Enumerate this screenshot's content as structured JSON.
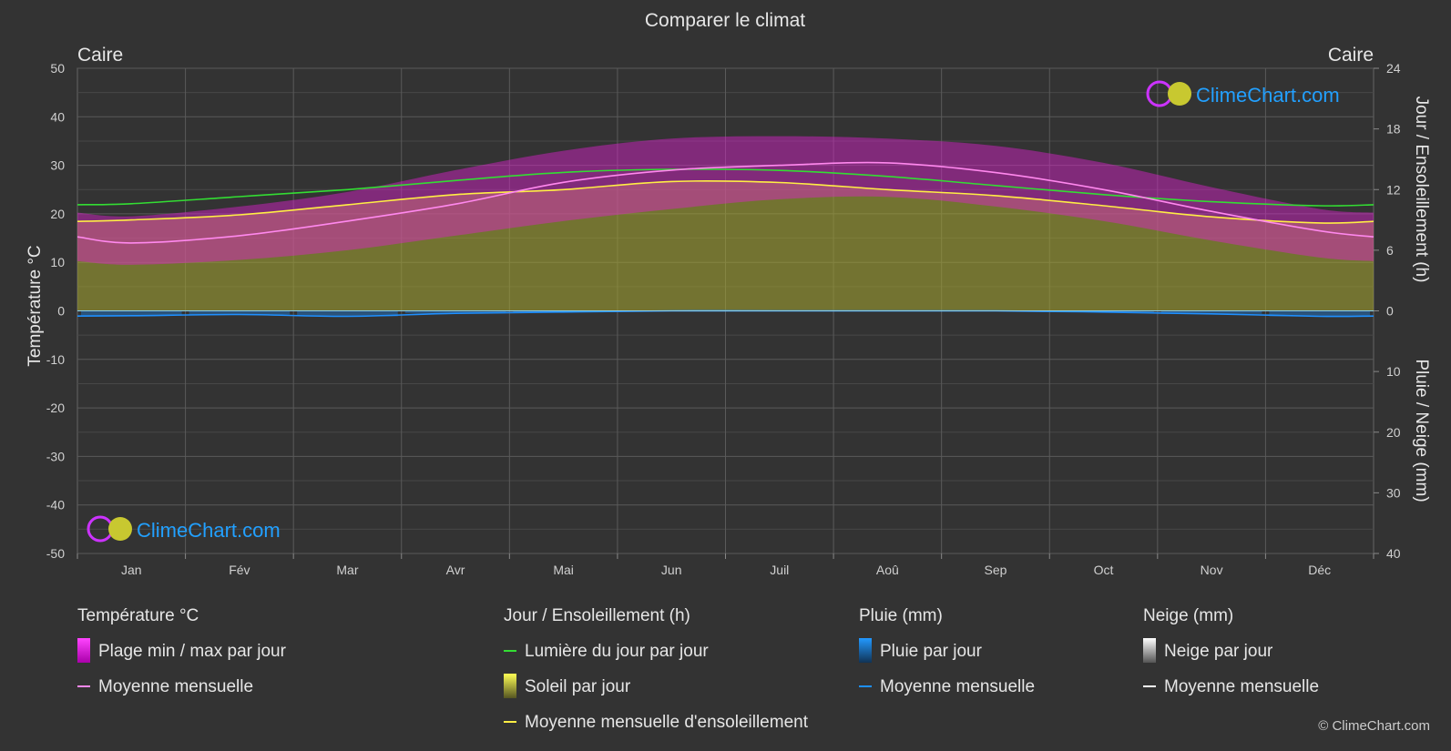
{
  "page": {
    "title": "Comparer le climat"
  },
  "chart_data": {
    "type": "area",
    "title": "Comparer le climat",
    "location_left": "Caire",
    "location_right": "Caire",
    "months": [
      "Jan",
      "Fév",
      "Mar",
      "Avr",
      "Mai",
      "Jun",
      "Juil",
      "Aoû",
      "Sep",
      "Oct",
      "Nov",
      "Déc"
    ],
    "axes": {
      "y_left": {
        "label": "Température °C",
        "min": -50,
        "max": 50,
        "ticks": [
          50,
          40,
          30,
          20,
          10,
          0,
          -10,
          -20,
          -30,
          -40,
          -50
        ]
      },
      "y_right_top": {
        "label": "Jour / Ensoleillement (h)",
        "min": 0,
        "max": 24,
        "ticks": [
          24,
          18,
          12,
          6,
          0
        ]
      },
      "y_right_bottom": {
        "label": "Pluie / Neige (mm)",
        "min": 0,
        "max": 40,
        "ticks": [
          10,
          20,
          30,
          40
        ]
      }
    },
    "series": {
      "temp_max_daily": [
        19.5,
        21.5,
        24.5,
        29,
        33,
        35.5,
        36,
        35.5,
        34,
        30.5,
        25.5,
        21
      ],
      "temp_min_daily": [
        9.5,
        10.5,
        12.5,
        15.5,
        18.5,
        21,
        23,
        23.5,
        21.5,
        18.5,
        14.5,
        11
      ],
      "temp_monthly_mean": [
        14,
        15.5,
        18.5,
        22,
        26.5,
        29,
        30,
        30.5,
        28.5,
        25,
        20.5,
        16.5
      ],
      "daylight_hours": [
        10.6,
        11.3,
        12.0,
        12.9,
        13.7,
        14.0,
        13.9,
        13.3,
        12.4,
        11.5,
        10.8,
        10.4
      ],
      "sunshine_hours": [
        9.0,
        9.5,
        10.5,
        11.5,
        12.0,
        12.8,
        12.7,
        12.0,
        11.4,
        10.4,
        9.3,
        8.7
      ],
      "rain_monthly_mean_mm": [
        0.8,
        0.6,
        0.9,
        0.4,
        0.2,
        0.0,
        0.0,
        0.0,
        0.0,
        0.2,
        0.5,
        0.9
      ],
      "snow_monthly_mean_mm": [
        0,
        0,
        0,
        0,
        0,
        0,
        0,
        0,
        0,
        0,
        0,
        0
      ]
    },
    "colors": {
      "temp_range": "#e020d0",
      "temp_mean": "#ff88ee",
      "daylight": "#33dd33",
      "sunshine_fill": "#a8a830",
      "sunshine_mean": "#ffee44",
      "rain": "#1e90ff",
      "snow": "#ffffff"
    }
  },
  "legend": {
    "temperature": {
      "heading": "Température °C",
      "items": [
        "Plage min / max par jour",
        "Moyenne mensuelle"
      ]
    },
    "daylight": {
      "heading": "Jour / Ensoleillement (h)",
      "items": [
        "Lumière du jour par jour",
        "Soleil par jour",
        "Moyenne mensuelle d'ensoleillement"
      ]
    },
    "rain": {
      "heading": "Pluie (mm)",
      "items": [
        "Pluie par jour",
        "Moyenne mensuelle"
      ]
    },
    "snow": {
      "heading": "Neige (mm)",
      "items": [
        "Neige par jour",
        "Moyenne mensuelle"
      ]
    }
  },
  "branding": {
    "logo_text": "ClimeChart.com",
    "copyright": "© ClimeChart.com"
  }
}
